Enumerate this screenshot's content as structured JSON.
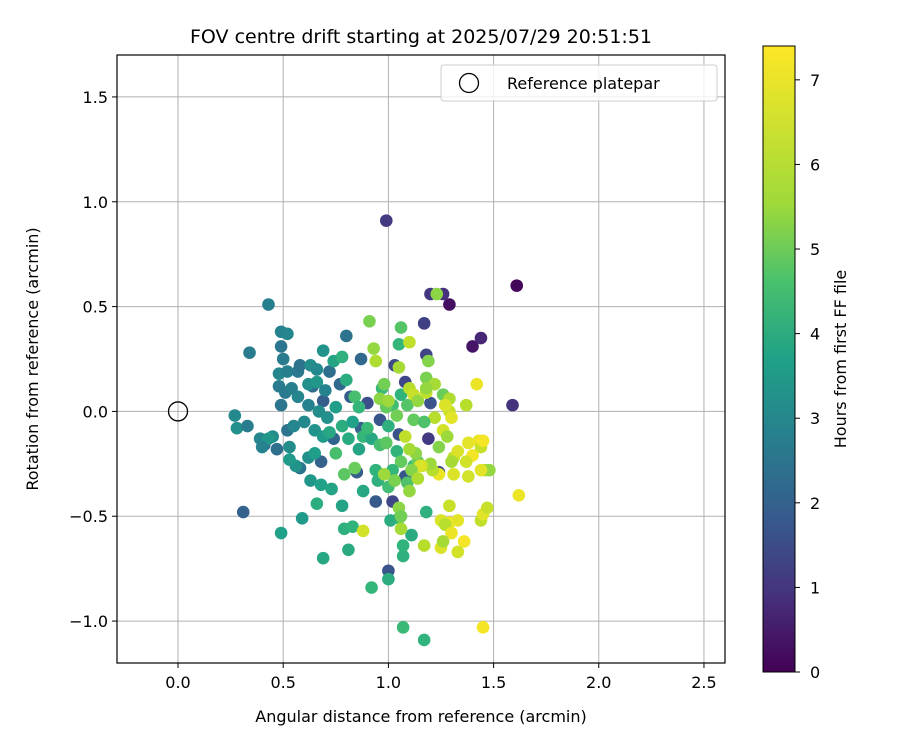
{
  "chart_data": {
    "type": "scatter",
    "title": "FOV centre drift starting at 2025/07/29 20:51:51",
    "xlabel": "Angular distance from reference (arcmin)",
    "ylabel": "Rotation from reference (arcmin)",
    "xlim": [
      -0.29,
      2.6
    ],
    "ylim": [
      -1.2,
      1.7
    ],
    "xticks": [
      0.0,
      0.5,
      1.0,
      1.5,
      2.0,
      2.5
    ],
    "yticks": [
      -1.0,
      -0.5,
      0.0,
      0.5,
      1.0,
      1.5
    ],
    "xtick_labels": [
      "0.0",
      "0.5",
      "1.0",
      "1.5",
      "2.0",
      "2.5"
    ],
    "ytick_labels": [
      "−1.0",
      "−0.5",
      "0.0",
      "0.5",
      "1.0",
      "1.5"
    ],
    "grid": true,
    "legend": {
      "placement": "top-right",
      "entries": [
        {
          "label": "Reference platepar",
          "marker": "open-circle"
        }
      ]
    },
    "reference_point": {
      "x": 0.0,
      "y": 0.0
    },
    "colorbar": {
      "label": "Hours from first FF file",
      "colormap": "viridis",
      "min": 0,
      "max": 7.4,
      "ticks": [
        0,
        1,
        2,
        3,
        4,
        5,
        6,
        7
      ],
      "tick_labels": [
        "0",
        "1",
        "2",
        "3",
        "4",
        "5",
        "6",
        "7"
      ]
    },
    "points": [
      {
        "x": 1.61,
        "y": 0.6,
        "c": 0.1
      },
      {
        "x": 1.29,
        "y": 0.51,
        "c": 0.3
      },
      {
        "x": 1.4,
        "y": 0.31,
        "c": 0.4
      },
      {
        "x": 1.44,
        "y": 0.35,
        "c": 0.8
      },
      {
        "x": 1.59,
        "y": 0.03,
        "c": 1.1
      },
      {
        "x": 0.99,
        "y": 0.91,
        "c": 1.3
      },
      {
        "x": 1.26,
        "y": 0.56,
        "c": 1.0
      },
      {
        "x": 1.2,
        "y": 0.56,
        "c": 1.2
      },
      {
        "x": 1.17,
        "y": 0.42,
        "c": 1.4
      },
      {
        "x": 1.18,
        "y": 0.27,
        "c": 1.5
      },
      {
        "x": 1.03,
        "y": 0.22,
        "c": 1.7
      },
      {
        "x": 1.08,
        "y": 0.14,
        "c": 1.6
      },
      {
        "x": 1.2,
        "y": 0.04,
        "c": 1.9
      },
      {
        "x": 1.19,
        "y": -0.13,
        "c": 1.3
      },
      {
        "x": 1.24,
        "y": -0.29,
        "c": 1.8
      },
      {
        "x": 1.08,
        "y": -0.31,
        "c": 2.0
      },
      {
        "x": 1.02,
        "y": -0.43,
        "c": 1.6
      },
      {
        "x": 1.0,
        "y": -0.76,
        "c": 1.9
      },
      {
        "x": 0.94,
        "y": -0.43,
        "c": 2.1
      },
      {
        "x": 0.85,
        "y": -0.29,
        "c": 2.2
      },
      {
        "x": 0.9,
        "y": 0.04,
        "c": 1.8
      },
      {
        "x": 0.96,
        "y": -0.04,
        "c": 2.0
      },
      {
        "x": 1.05,
        "y": -0.11,
        "c": 1.9
      },
      {
        "x": 0.87,
        "y": -0.08,
        "c": 2.3
      },
      {
        "x": 0.82,
        "y": 0.07,
        "c": 2.2
      },
      {
        "x": 0.74,
        "y": -0.13,
        "c": 2.4
      },
      {
        "x": 0.68,
        "y": -0.24,
        "c": 2.3
      },
      {
        "x": 0.77,
        "y": 0.13,
        "c": 2.5
      },
      {
        "x": 0.69,
        "y": 0.05,
        "c": 2.2
      },
      {
        "x": 0.31,
        "y": -0.48,
        "c": 2.3
      },
      {
        "x": 0.41,
        "y": -0.16,
        "c": 2.6
      },
      {
        "x": 0.47,
        "y": -0.18,
        "c": 2.7
      },
      {
        "x": 0.52,
        "y": -0.09,
        "c": 2.8
      },
      {
        "x": 0.58,
        "y": -0.27,
        "c": 2.9
      },
      {
        "x": 0.64,
        "y": 0.12,
        "c": 2.6
      },
      {
        "x": 0.72,
        "y": 0.19,
        "c": 2.7
      },
      {
        "x": 0.8,
        "y": 0.36,
        "c": 2.8
      },
      {
        "x": 0.87,
        "y": 0.25,
        "c": 2.5
      },
      {
        "x": 0.34,
        "y": 0.28,
        "c": 3.1
      },
      {
        "x": 0.43,
        "y": 0.51,
        "c": 3.2
      },
      {
        "x": 0.49,
        "y": 0.38,
        "c": 3.3
      },
      {
        "x": 0.52,
        "y": 0.37,
        "c": 3.4
      },
      {
        "x": 0.49,
        "y": 0.31,
        "c": 2.9
      },
      {
        "x": 0.5,
        "y": 0.25,
        "c": 3.1
      },
      {
        "x": 0.48,
        "y": 0.18,
        "c": 3.4
      },
      {
        "x": 0.52,
        "y": 0.19,
        "c": 3.2
      },
      {
        "x": 0.57,
        "y": 0.19,
        "c": 3.0
      },
      {
        "x": 0.58,
        "y": 0.22,
        "c": 2.8
      },
      {
        "x": 0.63,
        "y": 0.22,
        "c": 3.6
      },
      {
        "x": 0.66,
        "y": 0.2,
        "c": 3.5
      },
      {
        "x": 0.69,
        "y": 0.29,
        "c": 3.8
      },
      {
        "x": 0.62,
        "y": 0.13,
        "c": 3.7
      },
      {
        "x": 0.66,
        "y": 0.14,
        "c": 3.9
      },
      {
        "x": 0.7,
        "y": 0.1,
        "c": 3.3
      },
      {
        "x": 0.48,
        "y": 0.12,
        "c": 3.1
      },
      {
        "x": 0.51,
        "y": 0.09,
        "c": 3.0
      },
      {
        "x": 0.54,
        "y": 0.11,
        "c": 3.2
      },
      {
        "x": 0.57,
        "y": 0.07,
        "c": 3.4
      },
      {
        "x": 0.49,
        "y": 0.03,
        "c": 2.9
      },
      {
        "x": 0.62,
        "y": 0.03,
        "c": 3.3
      },
      {
        "x": 0.67,
        "y": 0.0,
        "c": 3.6
      },
      {
        "x": 0.71,
        "y": -0.03,
        "c": 3.7
      },
      {
        "x": 0.6,
        "y": -0.05,
        "c": 3.5
      },
      {
        "x": 0.55,
        "y": -0.07,
        "c": 3.4
      },
      {
        "x": 0.65,
        "y": -0.09,
        "c": 3.8
      },
      {
        "x": 0.69,
        "y": -0.12,
        "c": 4.0
      },
      {
        "x": 0.27,
        "y": -0.02,
        "c": 3.5
      },
      {
        "x": 0.28,
        "y": -0.08,
        "c": 3.7
      },
      {
        "x": 0.33,
        "y": -0.07,
        "c": 3.1
      },
      {
        "x": 0.39,
        "y": -0.13,
        "c": 3.4
      },
      {
        "x": 0.45,
        "y": -0.12,
        "c": 3.6
      },
      {
        "x": 0.43,
        "y": -0.13,
        "c": 3.9
      },
      {
        "x": 0.4,
        "y": -0.17,
        "c": 3.3
      },
      {
        "x": 0.53,
        "y": -0.17,
        "c": 3.6
      },
      {
        "x": 0.56,
        "y": -0.26,
        "c": 3.8
      },
      {
        "x": 0.53,
        "y": -0.23,
        "c": 4.0
      },
      {
        "x": 0.62,
        "y": -0.22,
        "c": 3.7
      },
      {
        "x": 0.65,
        "y": -0.2,
        "c": 4.1
      },
      {
        "x": 0.63,
        "y": -0.33,
        "c": 3.9
      },
      {
        "x": 0.68,
        "y": -0.35,
        "c": 4.2
      },
      {
        "x": 0.73,
        "y": -0.37,
        "c": 4.3
      },
      {
        "x": 0.59,
        "y": -0.51,
        "c": 4.0
      },
      {
        "x": 0.49,
        "y": -0.58,
        "c": 4.2
      },
      {
        "x": 0.69,
        "y": -0.7,
        "c": 4.4
      },
      {
        "x": 0.66,
        "y": -0.44,
        "c": 4.6
      },
      {
        "x": 0.78,
        "y": -0.45,
        "c": 4.3
      },
      {
        "x": 0.79,
        "y": -0.56,
        "c": 4.7
      },
      {
        "x": 0.83,
        "y": -0.55,
        "c": 4.8
      },
      {
        "x": 0.81,
        "y": -0.66,
        "c": 4.5
      },
      {
        "x": 0.92,
        "y": -0.84,
        "c": 4.9
      },
      {
        "x": 1.0,
        "y": -0.8,
        "c": 4.6
      },
      {
        "x": 1.07,
        "y": -0.69,
        "c": 4.7
      },
      {
        "x": 1.07,
        "y": -0.64,
        "c": 4.8
      },
      {
        "x": 1.11,
        "y": -0.59,
        "c": 4.5
      },
      {
        "x": 1.07,
        "y": -1.03,
        "c": 5.0
      },
      {
        "x": 1.17,
        "y": -1.09,
        "c": 4.8
      },
      {
        "x": 1.18,
        "y": -0.48,
        "c": 4.7
      },
      {
        "x": 1.05,
        "y": -0.51,
        "c": 5.3
      },
      {
        "x": 1.01,
        "y": -0.52,
        "c": 4.6
      },
      {
        "x": 0.88,
        "y": -0.38,
        "c": 4.4
      },
      {
        "x": 0.95,
        "y": -0.33,
        "c": 4.7
      },
      {
        "x": 1.0,
        "y": -0.36,
        "c": 5.1
      },
      {
        "x": 0.94,
        "y": -0.28,
        "c": 4.8
      },
      {
        "x": 0.86,
        "y": -0.18,
        "c": 4.3
      },
      {
        "x": 0.81,
        "y": -0.13,
        "c": 4.5
      },
      {
        "x": 0.78,
        "y": -0.07,
        "c": 4.6
      },
      {
        "x": 0.83,
        "y": -0.05,
        "c": 4.2
      },
      {
        "x": 0.88,
        "y": -0.12,
        "c": 4.9
      },
      {
        "x": 0.92,
        "y": -0.13,
        "c": 4.4
      },
      {
        "x": 0.9,
        "y": -0.08,
        "c": 5.0
      },
      {
        "x": 0.96,
        "y": -0.16,
        "c": 5.2
      },
      {
        "x": 1.0,
        "y": -0.07,
        "c": 4.7
      },
      {
        "x": 0.99,
        "y": -0.15,
        "c": 5.5
      },
      {
        "x": 1.04,
        "y": -0.19,
        "c": 4.8
      },
      {
        "x": 1.06,
        "y": -0.24,
        "c": 5.6
      },
      {
        "x": 1.02,
        "y": -0.28,
        "c": 4.9
      },
      {
        "x": 1.09,
        "y": -0.34,
        "c": 5.3
      },
      {
        "x": 1.12,
        "y": -0.26,
        "c": 5.0
      },
      {
        "x": 1.14,
        "y": -0.24,
        "c": 5.7
      },
      {
        "x": 1.02,
        "y": 0.03,
        "c": 5.1
      },
      {
        "x": 1.06,
        "y": 0.08,
        "c": 4.8
      },
      {
        "x": 1.09,
        "y": 0.03,
        "c": 5.4
      },
      {
        "x": 1.04,
        "y": -0.02,
        "c": 5.8
      },
      {
        "x": 0.97,
        "y": 0.11,
        "c": 5.0
      },
      {
        "x": 0.99,
        "y": 0.02,
        "c": 5.6
      },
      {
        "x": 0.84,
        "y": 0.07,
        "c": 5.2
      },
      {
        "x": 0.86,
        "y": 0.02,
        "c": 4.9
      },
      {
        "x": 0.8,
        "y": 0.15,
        "c": 4.6
      },
      {
        "x": 0.74,
        "y": 0.24,
        "c": 4.3
      },
      {
        "x": 0.78,
        "y": 0.26,
        "c": 4.7
      },
      {
        "x": 0.75,
        "y": 0.02,
        "c": 4.1
      },
      {
        "x": 0.72,
        "y": -0.1,
        "c": 4.4
      },
      {
        "x": 0.75,
        "y": -0.2,
        "c": 5.2
      },
      {
        "x": 0.79,
        "y": -0.3,
        "c": 5.5
      },
      {
        "x": 0.84,
        "y": -0.27,
        "c": 5.7
      },
      {
        "x": 0.88,
        "y": -0.57,
        "c": 6.9
      },
      {
        "x": 0.91,
        "y": 0.43,
        "c": 5.9
      },
      {
        "x": 1.06,
        "y": 0.4,
        "c": 5.4
      },
      {
        "x": 1.05,
        "y": 0.32,
        "c": 4.9
      },
      {
        "x": 1.1,
        "y": 0.33,
        "c": 6.7
      },
      {
        "x": 0.93,
        "y": 0.3,
        "c": 6.2
      },
      {
        "x": 0.94,
        "y": 0.24,
        "c": 6.5
      },
      {
        "x": 0.98,
        "y": 0.13,
        "c": 5.8
      },
      {
        "x": 0.96,
        "y": 0.06,
        "c": 6.1
      },
      {
        "x": 1.0,
        "y": 0.05,
        "c": 6.3
      },
      {
        "x": 1.05,
        "y": 0.21,
        "c": 6.4
      },
      {
        "x": 1.1,
        "y": 0.11,
        "c": 6.6
      },
      {
        "x": 1.12,
        "y": 0.08,
        "c": 6.8
      },
      {
        "x": 1.14,
        "y": 0.05,
        "c": 6.2
      },
      {
        "x": 1.18,
        "y": 0.16,
        "c": 5.9
      },
      {
        "x": 1.19,
        "y": 0.24,
        "c": 6.0
      },
      {
        "x": 1.22,
        "y": 0.13,
        "c": 6.4
      },
      {
        "x": 1.18,
        "y": 0.09,
        "c": 6.7
      },
      {
        "x": 1.26,
        "y": 0.08,
        "c": 5.7
      },
      {
        "x": 1.29,
        "y": 0.06,
        "c": 6.5
      },
      {
        "x": 1.23,
        "y": 0.56,
        "c": 6.1
      },
      {
        "x": 1.29,
        "y": 0.0,
        "c": 6.8
      },
      {
        "x": 1.27,
        "y": 0.03,
        "c": 7.0
      },
      {
        "x": 1.22,
        "y": -0.03,
        "c": 6.6
      },
      {
        "x": 1.26,
        "y": -0.09,
        "c": 6.9
      },
      {
        "x": 1.3,
        "y": -0.03,
        "c": 7.1
      },
      {
        "x": 1.28,
        "y": -0.12,
        "c": 6.3
      },
      {
        "x": 1.24,
        "y": -0.17,
        "c": 6.0
      },
      {
        "x": 1.31,
        "y": -0.22,
        "c": 6.7
      },
      {
        "x": 1.33,
        "y": -0.19,
        "c": 7.0
      },
      {
        "x": 1.37,
        "y": 0.03,
        "c": 6.6
      },
      {
        "x": 1.42,
        "y": 0.13,
        "c": 7.2
      },
      {
        "x": 1.38,
        "y": -0.15,
        "c": 7.1
      },
      {
        "x": 1.4,
        "y": -0.21,
        "c": 7.3
      },
      {
        "x": 1.37,
        "y": -0.24,
        "c": 6.9
      },
      {
        "x": 1.43,
        "y": -0.14,
        "c": 7.2
      },
      {
        "x": 1.44,
        "y": -0.17,
        "c": 6.8
      },
      {
        "x": 1.45,
        "y": -0.14,
        "c": 7.3
      },
      {
        "x": 1.46,
        "y": -0.28,
        "c": 6.5
      },
      {
        "x": 1.48,
        "y": -0.28,
        "c": 6.2
      },
      {
        "x": 1.44,
        "y": -0.28,
        "c": 7.1
      },
      {
        "x": 1.38,
        "y": -0.31,
        "c": 6.9
      },
      {
        "x": 1.3,
        "y": -0.24,
        "c": 6.4
      },
      {
        "x": 1.31,
        "y": -0.3,
        "c": 7.0
      },
      {
        "x": 1.24,
        "y": -0.3,
        "c": 7.2
      },
      {
        "x": 1.21,
        "y": -0.28,
        "c": 6.6
      },
      {
        "x": 1.2,
        "y": -0.25,
        "c": 6.3
      },
      {
        "x": 1.16,
        "y": -0.26,
        "c": 6.8
      },
      {
        "x": 1.15,
        "y": -0.26,
        "c": 7.0
      },
      {
        "x": 1.13,
        "y": -0.2,
        "c": 6.1
      },
      {
        "x": 1.1,
        "y": -0.18,
        "c": 6.4
      },
      {
        "x": 1.08,
        "y": -0.12,
        "c": 6.7
      },
      {
        "x": 1.11,
        "y": -0.28,
        "c": 6.0
      },
      {
        "x": 1.14,
        "y": -0.32,
        "c": 6.5
      },
      {
        "x": 1.1,
        "y": -0.38,
        "c": 6.2
      },
      {
        "x": 1.03,
        "y": -0.33,
        "c": 5.9
      },
      {
        "x": 0.98,
        "y": -0.3,
        "c": 6.3
      },
      {
        "x": 1.05,
        "y": -0.46,
        "c": 6.1
      },
      {
        "x": 1.06,
        "y": -0.5,
        "c": 5.8
      },
      {
        "x": 1.06,
        "y": -0.56,
        "c": 6.4
      },
      {
        "x": 1.29,
        "y": -0.45,
        "c": 6.8
      },
      {
        "x": 1.29,
        "y": -0.53,
        "c": 7.2
      },
      {
        "x": 1.25,
        "y": -0.52,
        "c": 7.0
      },
      {
        "x": 1.27,
        "y": -0.54,
        "c": 6.6
      },
      {
        "x": 1.33,
        "y": -0.52,
        "c": 7.1
      },
      {
        "x": 1.36,
        "y": -0.62,
        "c": 7.3
      },
      {
        "x": 1.33,
        "y": -0.67,
        "c": 6.9
      },
      {
        "x": 1.3,
        "y": -0.58,
        "c": 7.2
      },
      {
        "x": 1.25,
        "y": -0.65,
        "c": 7.0
      },
      {
        "x": 1.26,
        "y": -0.62,
        "c": 6.4
      },
      {
        "x": 1.17,
        "y": -0.64,
        "c": 6.6
      },
      {
        "x": 1.44,
        "y": -0.52,
        "c": 6.7
      },
      {
        "x": 1.45,
        "y": -0.49,
        "c": 7.1
      },
      {
        "x": 1.47,
        "y": -0.46,
        "c": 6.8
      },
      {
        "x": 1.62,
        "y": -0.4,
        "c": 7.2
      },
      {
        "x": 1.45,
        "y": -1.03,
        "c": 7.3
      },
      {
        "x": 1.18,
        "y": 0.11,
        "c": 6.2
      },
      {
        "x": 1.12,
        "y": -0.04,
        "c": 5.6
      },
      {
        "x": 1.17,
        "y": -0.05,
        "c": 5.3
      }
    ]
  }
}
